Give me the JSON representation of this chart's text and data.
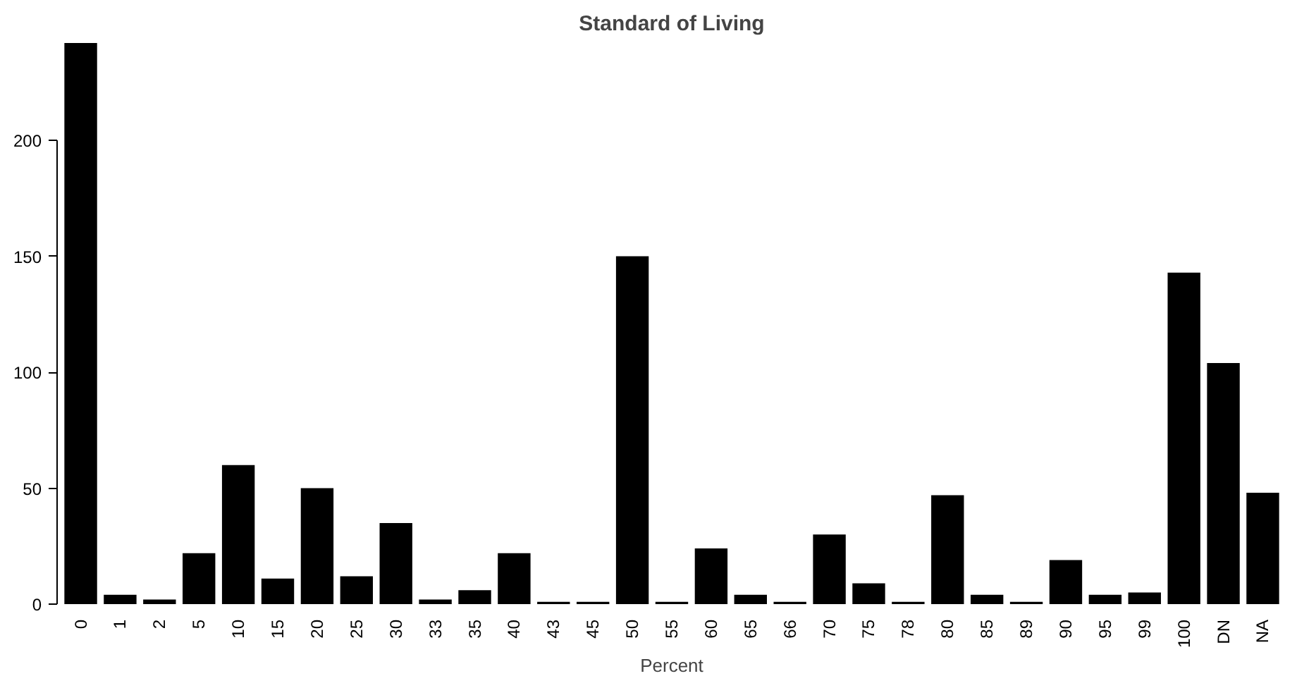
{
  "chart_data": {
    "type": "bar",
    "title": "Standard of Living",
    "xlabel": "Percent",
    "categories": [
      "0",
      "1",
      "2",
      "5",
      "10",
      "15",
      "20",
      "25",
      "30",
      "33",
      "35",
      "40",
      "43",
      "45",
      "50",
      "55",
      "60",
      "65",
      "66",
      "70",
      "75",
      "78",
      "80",
      "85",
      "89",
      "90",
      "95",
      "99",
      "100",
      "DN",
      "NA"
    ],
    "values": [
      242,
      4,
      2,
      22,
      60,
      11,
      50,
      12,
      35,
      2,
      6,
      22,
      1,
      1,
      150,
      1,
      24,
      4,
      1,
      30,
      9,
      1,
      47,
      4,
      1,
      19,
      4,
      5,
      143,
      104,
      48
    ],
    "color": "#000000",
    "ylim": [
      0,
      242
    ],
    "yticks": [
      0,
      50,
      100,
      150,
      200
    ],
    "grid": false
  }
}
